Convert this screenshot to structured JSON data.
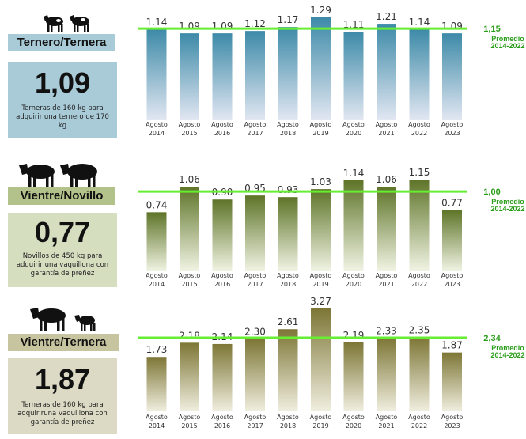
{
  "colors": {
    "average_line": "#66ee33",
    "average_text": "#2a9d1a",
    "panel1_bar_top": "#3d8aa8",
    "panel1_bar_bottom": "#e2e7f2",
    "panel1_banner": "#a9cbd8",
    "panel1_box": "#a9cbd8",
    "panel2_bar_top": "#5e7428",
    "panel2_bar_bottom": "#f1f4e4",
    "panel2_banner": "#b3c28a",
    "panel2_box": "#d6dec0",
    "panel3_bar_top": "#7d7636",
    "panel3_bar_bottom": "#f0eedf",
    "panel3_banner": "#c7c4a0",
    "panel3_box": "#dcdac4"
  },
  "panels": [
    {
      "banner": "Ternero/Ternera",
      "ratio": "1,09",
      "description": "Terneras de 160  kg para adquirir una ternero de 170  kg",
      "icon": "two-calves-icon"
    },
    {
      "banner": "Vientre/Novillo",
      "ratio": "0,77",
      "description": "Novillos de 450 kg para adquirir una vaquillona con garantía de preñez",
      "icon": "two-cows-icon"
    },
    {
      "banner": "Vientre/Ternera",
      "ratio": "1,87",
      "description": "Terneras de 160  kg para adquiriruna vaquillona con garantía de preñez",
      "icon": "cow-and-calf-icon"
    }
  ],
  "chart_data": [
    {
      "type": "bar",
      "categories": [
        "Agosto 2014",
        "Agosto 2015",
        "Agosto 2016",
        "Agosto 2017",
        "Agosto 2018",
        "Agosto 2019",
        "Agosto 2020",
        "Agosto 2021",
        "Agosto 2022",
        "Agosto 2023"
      ],
      "values": [
        1.14,
        1.09,
        1.09,
        1.12,
        1.17,
        1.29,
        1.11,
        1.21,
        1.14,
        1.09
      ],
      "value_labels": [
        "1.14",
        "1.09",
        "1.09",
        "1.12",
        "1.17",
        "1.29",
        "1.11",
        "1.21",
        "1.14",
        "1.09"
      ],
      "average": {
        "value": 1.15,
        "value_label": "1,15",
        "label_line1": "Promedio",
        "label_line2": "2014-2022"
      },
      "ylim": [
        0,
        1.29
      ]
    },
    {
      "type": "bar",
      "categories": [
        "Agosto 2014",
        "Agosto 2015",
        "Agosto 2016",
        "Agosto 2017",
        "Agosto 2018",
        "Agosto 2019",
        "Agosto 2020",
        "Agosto 2021",
        "Agosto 2022",
        "Agosto 2023"
      ],
      "values": [
        0.74,
        1.06,
        0.9,
        0.95,
        0.93,
        1.03,
        1.14,
        1.06,
        1.15,
        0.77
      ],
      "value_labels": [
        "0.74",
        "1.06",
        "0.90",
        "0.95",
        "0.93",
        "1.03",
        "1.14",
        "1.06",
        "1.15",
        "0.77"
      ],
      "average": {
        "value": 1.0,
        "value_label": "1,00",
        "label_line1": "Promedio",
        "label_line2": "2014-2022"
      },
      "ylim": [
        0,
        1.15
      ]
    },
    {
      "type": "bar",
      "categories": [
        "Agosto 2014",
        "Agosto 2015",
        "Agosto 2016",
        "Agosto 2017",
        "Agosto 2018",
        "Agosto 2019",
        "Agosto 2020",
        "Agosto 2021",
        "Agosto 2022",
        "Agosto 2023"
      ],
      "values": [
        1.73,
        2.18,
        2.14,
        2.3,
        2.61,
        3.27,
        2.19,
        2.33,
        2.35,
        1.87
      ],
      "value_labels": [
        "1.73",
        "2.18",
        "2.14",
        "2.30",
        "2.61",
        "3.27",
        "2.19",
        "2.33",
        "2.35",
        "1.87"
      ],
      "average": {
        "value": 2.34,
        "value_label": "2,34",
        "label_line1": "Promedio",
        "label_line2": "2014-2022"
      },
      "ylim": [
        0,
        3.27
      ]
    }
  ]
}
